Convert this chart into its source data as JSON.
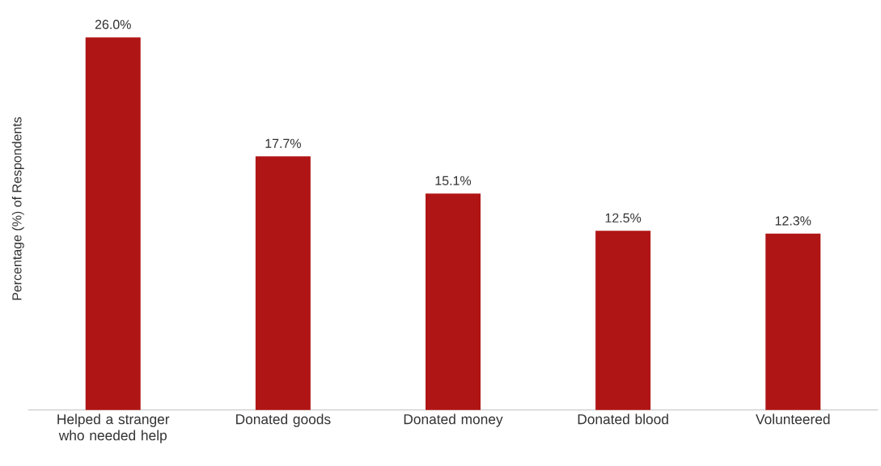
{
  "chart_data": {
    "type": "bar",
    "ylabel": "Percentage (%) of Respondents",
    "categories": [
      "Helped a stranger who needed help",
      "Donated goods",
      "Donated money",
      "Donated blood",
      "Volunteered"
    ],
    "values": [
      26.0,
      17.7,
      15.1,
      12.5,
      12.3
    ],
    "value_labels": [
      "26.0%",
      "17.7%",
      "15.1%",
      "12.5%",
      "12.3%"
    ],
    "color": "#b01515"
  }
}
